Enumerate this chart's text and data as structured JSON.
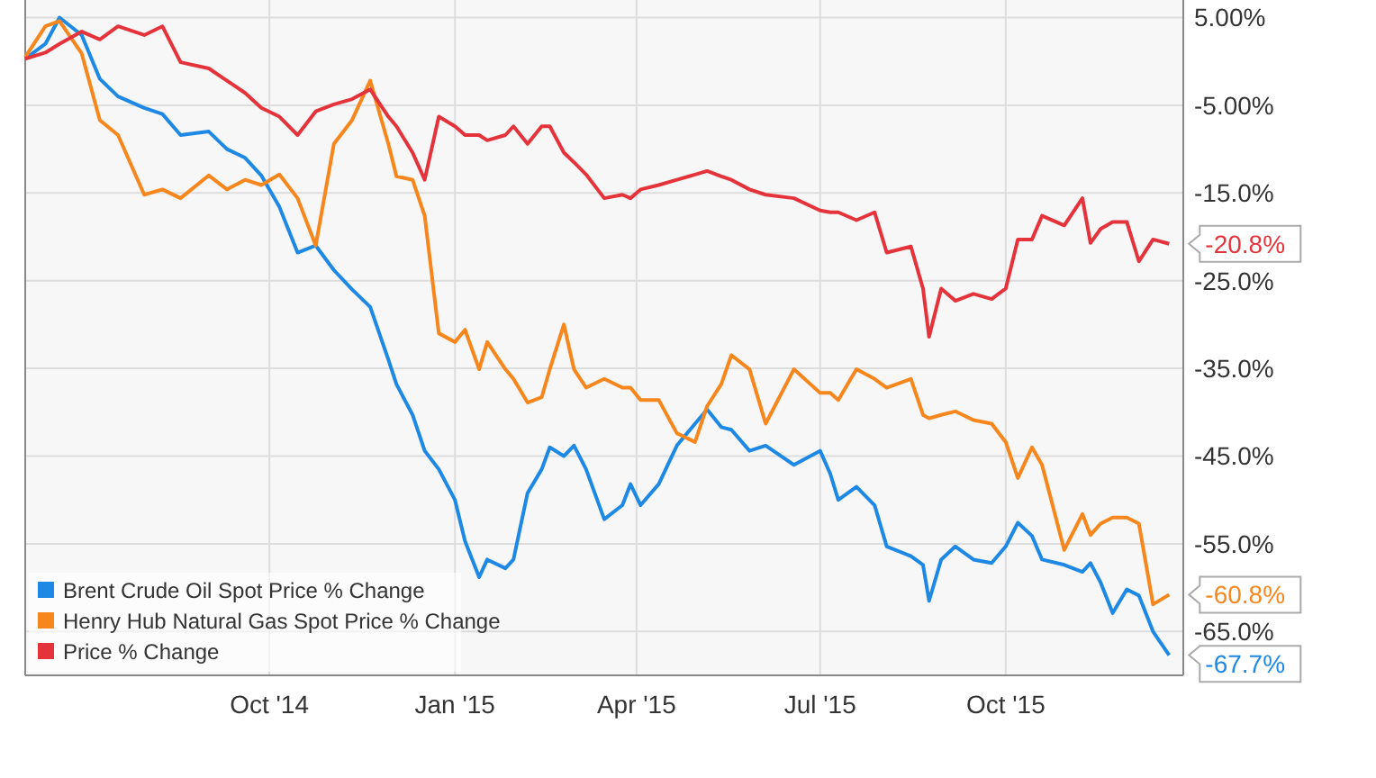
{
  "chart_data": {
    "type": "line",
    "x": [
      "2014-06-02",
      "2014-06-12",
      "2014-06-19",
      "2014-06-30",
      "2014-07-09",
      "2014-07-18",
      "2014-07-31",
      "2014-08-09",
      "2014-08-18",
      "2014-09-01",
      "2014-09-10",
      "2014-09-19",
      "2014-09-27",
      "2014-10-06",
      "2014-10-15",
      "2014-10-24",
      "2014-11-02",
      "2014-11-11",
      "2014-11-20",
      "2014-11-29",
      "2014-12-03",
      "2014-12-11",
      "2014-12-17",
      "2014-12-24",
      "2015-01-01",
      "2015-01-06",
      "2015-01-13",
      "2015-01-17",
      "2015-01-26",
      "2015-01-30",
      "2015-02-06",
      "2015-02-13",
      "2015-02-17",
      "2015-02-24",
      "2015-03-01",
      "2015-03-07",
      "2015-03-16",
      "2015-03-25",
      "2015-03-29",
      "2015-04-03",
      "2015-04-12",
      "2015-04-21",
      "2015-04-30",
      "2015-05-06",
      "2015-05-13",
      "2015-05-18",
      "2015-05-27",
      "2015-06-04",
      "2015-06-18",
      "2015-07-01",
      "2015-07-06",
      "2015-07-10",
      "2015-07-19",
      "2015-07-28",
      "2015-08-03",
      "2015-08-15",
      "2015-08-21",
      "2015-08-24",
      "2015-08-30",
      "2015-09-06",
      "2015-09-15",
      "2015-09-24",
      "2015-10-01",
      "2015-10-07",
      "2015-10-14",
      "2015-10-19",
      "2015-10-30",
      "2015-11-08",
      "2015-11-12",
      "2015-11-17",
      "2015-11-23",
      "2015-11-30",
      "2015-12-06",
      "2015-12-13",
      "2015-12-21"
    ],
    "series": [
      {
        "name": "Brent Crude Oil Spot Price % Change",
        "color": "#1e88e5",
        "values": [
          0.3,
          2,
          5,
          3,
          -2,
          -4,
          -5.3,
          -6,
          -8.4,
          -8,
          -10,
          -11,
          -13,
          -16.6,
          -21.8,
          -21,
          -23.8,
          -26,
          -28,
          -34,
          -36.8,
          -40.3,
          -44.4,
          -46.5,
          -50,
          -54.7,
          -58.8,
          -56.8,
          -57.8,
          -56.8,
          -49.2,
          -46.5,
          -44,
          -45,
          -43.8,
          -46.5,
          -52.2,
          -50.6,
          -48.2,
          -50.6,
          -48.2,
          -43.8,
          -41.3,
          -39.7,
          -41.7,
          -42,
          -44.4,
          -43.8,
          -46,
          -44.4,
          -47,
          -50,
          -48.5,
          -50.6,
          -55.3,
          -56.4,
          -57.4,
          -61.5,
          -56.8,
          -55.3,
          -56.8,
          -57.2,
          -55.3,
          -52.6,
          -54.1,
          -56.8,
          -57.4,
          -58.2,
          -57.2,
          -59.4,
          -62.9,
          -60.2,
          -60.9,
          -65,
          -67.7
        ]
      },
      {
        "name": "Henry Hub Natural Gas Spot Price % Change",
        "color": "#f7861c",
        "values": [
          0.5,
          4,
          4.6,
          0.9,
          -6.7,
          -8.4,
          -15.2,
          -14.6,
          -15.6,
          -13,
          -14.6,
          -13.5,
          -14.1,
          -12.9,
          -15.6,
          -21,
          -9.4,
          -6.7,
          -2.2,
          -9.4,
          -13.1,
          -13.5,
          -17.6,
          -31,
          -32,
          -30.6,
          -35.1,
          -32,
          -35.1,
          -36.2,
          -38.9,
          -38.3,
          -35.1,
          -30,
          -35.1,
          -37.2,
          -36.2,
          -37.2,
          -37.2,
          -38.6,
          -38.6,
          -42.4,
          -43.4,
          -39.3,
          -36.8,
          -33.5,
          -35.1,
          -41.3,
          -35.1,
          -37.8,
          -37.8,
          -38.6,
          -35.1,
          -36.2,
          -37.2,
          -36.2,
          -40.3,
          -40.7,
          -40.3,
          -39.9,
          -40.9,
          -41.3,
          -43.4,
          -47.5,
          -44,
          -46,
          -55.7,
          -51.6,
          -54,
          -52.7,
          -52,
          -52,
          -52.7,
          -61.9,
          -60.8
        ]
      },
      {
        "name": "Price % Change",
        "color": "#e5333b",
        "values": [
          0.3,
          1,
          2,
          3.4,
          2.5,
          4,
          3,
          4,
          -0.1,
          -0.8,
          -2.2,
          -3.6,
          -5.3,
          -6.3,
          -8.4,
          -5.7,
          -4.9,
          -4.3,
          -3.2,
          -6.3,
          -7.4,
          -10.4,
          -13.5,
          -6.3,
          -7.4,
          -8.4,
          -8.4,
          -9,
          -8.4,
          -7.4,
          -9.4,
          -7.4,
          -7.4,
          -10.4,
          -11.5,
          -12.9,
          -15.6,
          -15.2,
          -15.6,
          -14.6,
          -14.1,
          -13.5,
          -12.9,
          -12.5,
          -13.1,
          -13.5,
          -14.6,
          -15.2,
          -15.6,
          -17,
          -17.2,
          -17.2,
          -18.1,
          -17.2,
          -21.8,
          -21.1,
          -25.9,
          -31.4,
          -25.9,
          -27.3,
          -26.5,
          -27.1,
          -25.9,
          -20.3,
          -20.3,
          -17.6,
          -18.7,
          -15.6,
          -20.7,
          -19.1,
          -18.3,
          -18.3,
          -22.8,
          -20.3,
          -20.8
        ]
      }
    ],
    "xlim": [
      "2014-06-02",
      "2015-12-28"
    ],
    "xticks": [
      {
        "value": "2014-10-01",
        "label": "Oct '14"
      },
      {
        "value": "2015-01-01",
        "label": "Jan '15"
      },
      {
        "value": "2015-04-01",
        "label": "Apr '15"
      },
      {
        "value": "2015-07-01",
        "label": "Jul '15"
      },
      {
        "value": "2015-10-01",
        "label": "Oct '15"
      }
    ],
    "ylim": [
      -70,
      7
    ],
    "yticks": [
      {
        "value": 5,
        "label": "5.00%"
      },
      {
        "value": -5,
        "label": "-5.00%"
      },
      {
        "value": -15,
        "label": "-15.0%"
      },
      {
        "value": -25,
        "label": "-25.0%"
      },
      {
        "value": -35,
        "label": "-35.0%"
      },
      {
        "value": -45,
        "label": "-45.0%"
      },
      {
        "value": -55,
        "label": "-55.0%"
      },
      {
        "value": -65,
        "label": "-65.0%"
      }
    ],
    "annotations": [
      {
        "text": "-20.8%",
        "x": "2015-12-21",
        "y": -20.8
      },
      {
        "text": "-60.8%",
        "x": "2015-12-21",
        "y": -60.8
      },
      {
        "text": "-67.7%",
        "x": "2015-12-21",
        "y": -67.7
      }
    ],
    "grid": true,
    "legend": "bottom left",
    "marker": "none",
    "line_style": "solid"
  }
}
